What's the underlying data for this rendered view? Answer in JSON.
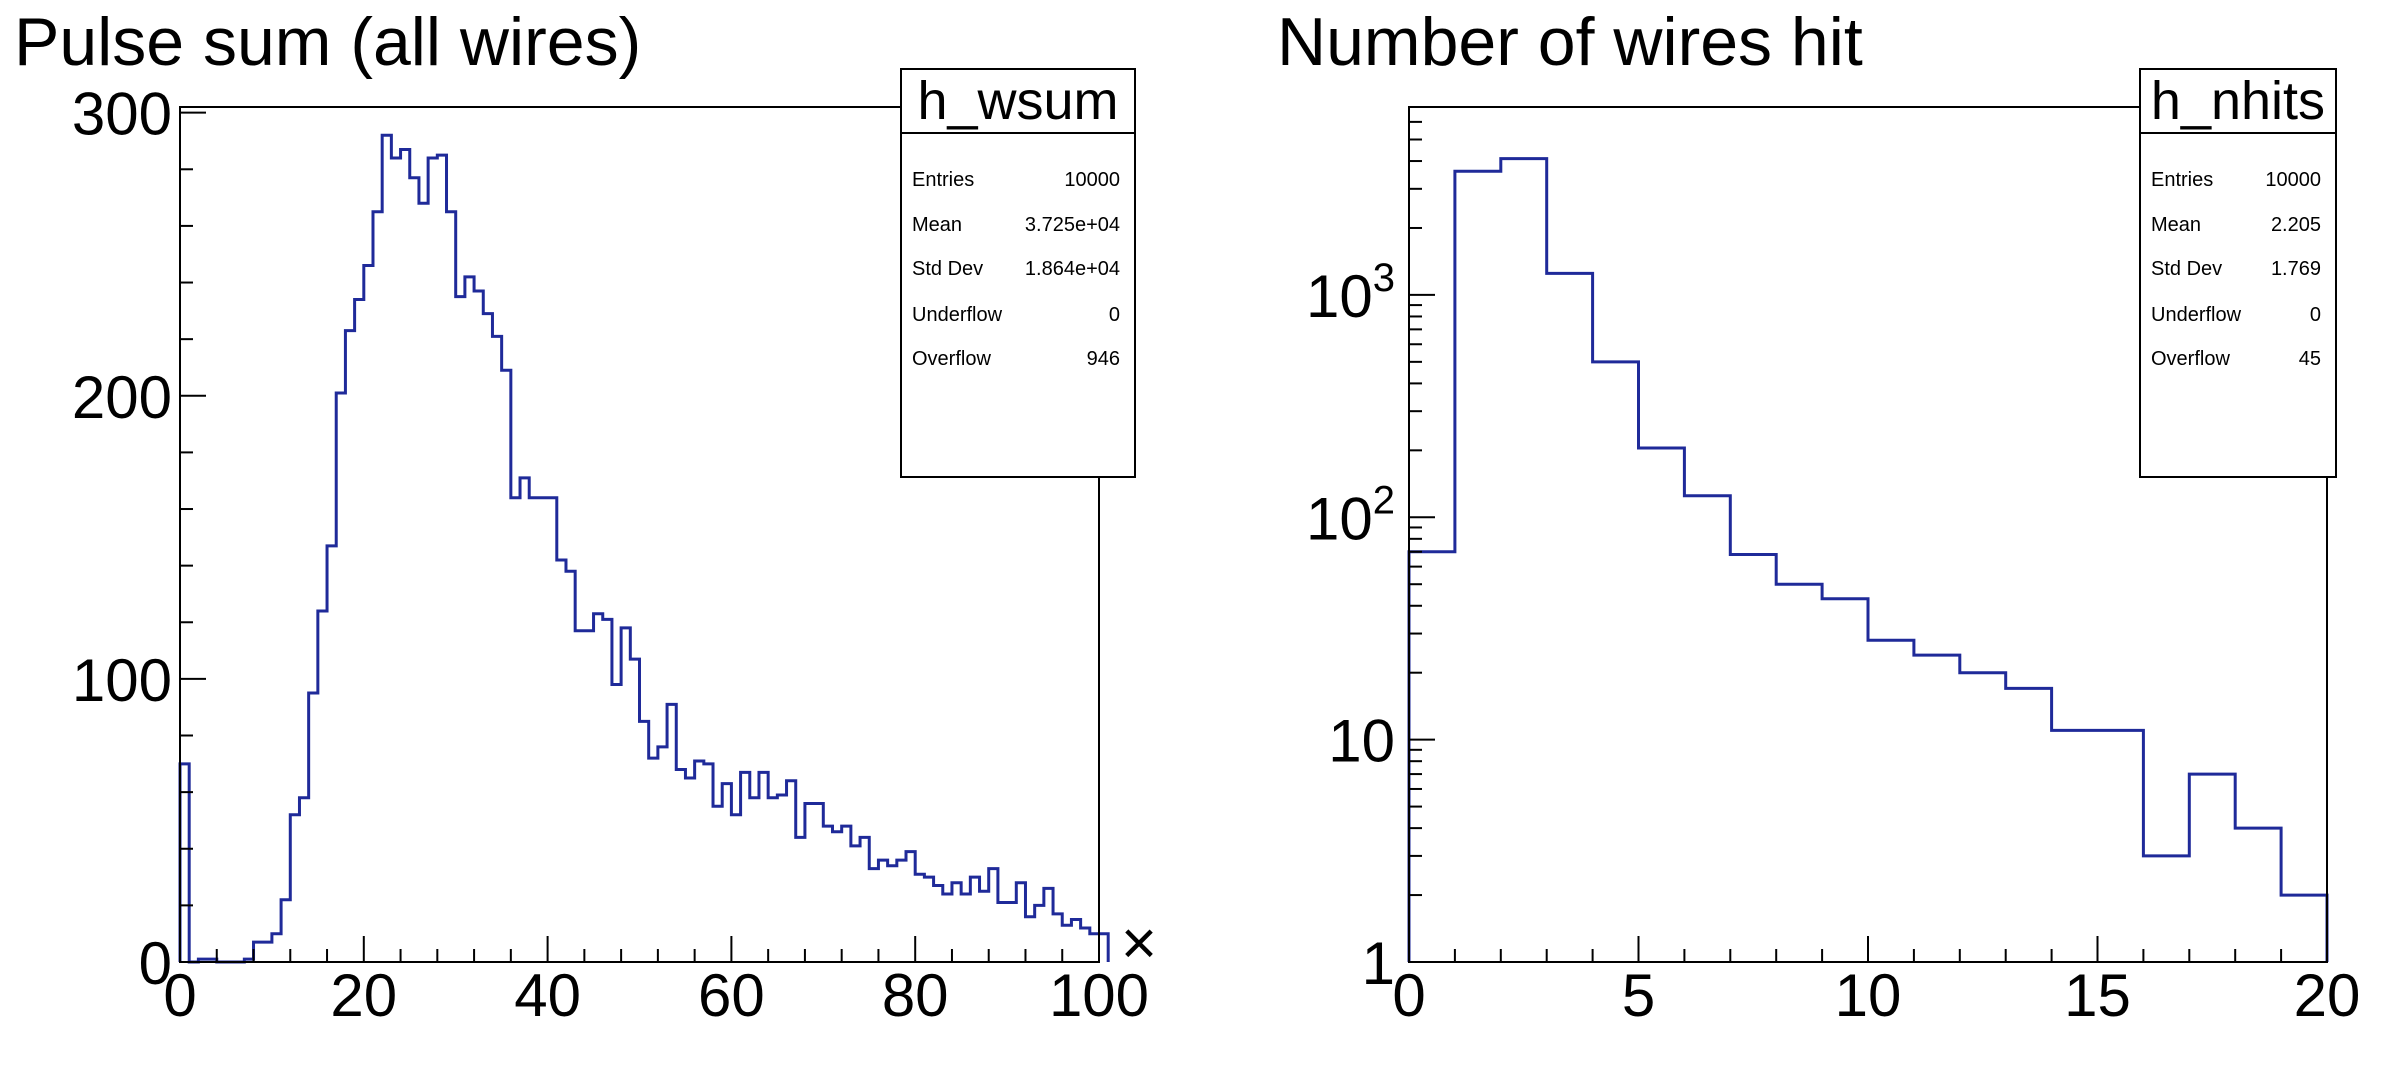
{
  "chart_data": [
    {
      "type": "histogram",
      "title": "Pulse sum (all wires)",
      "xlabel": "",
      "ylabel": "",
      "x_tick_labels": [
        "0",
        "20",
        "40",
        "60",
        "80",
        "100"
      ],
      "x_axis_multiplier": "×",
      "y_tick_labels": [
        "0",
        "100",
        "200",
        "300"
      ],
      "xlim": [
        0,
        100
      ],
      "ylim": [
        0,
        302
      ],
      "log_y": false,
      "grid": false,
      "line_color": "#1f2a99",
      "bin_edges": {
        "start": 0,
        "width": 1
      },
      "values": [
        70,
        0,
        1,
        1,
        0,
        0,
        0,
        1,
        7,
        7,
        10,
        22,
        52,
        58,
        95,
        124,
        147,
        201,
        223,
        234,
        246,
        265,
        292,
        284,
        287,
        277,
        268,
        284,
        285,
        265,
        235,
        242,
        237,
        229,
        221,
        209,
        164,
        171,
        164,
        164,
        164,
        142,
        138,
        117,
        117,
        123,
        121,
        98,
        118,
        107,
        85,
        72,
        76,
        91,
        68,
        65,
        71,
        70,
        55,
        63,
        52,
        67,
        58,
        67,
        58,
        59,
        64,
        44,
        56,
        56,
        48,
        46,
        48,
        41,
        44,
        33,
        36,
        34,
        36,
        39,
        31,
        30,
        27,
        24,
        28,
        24,
        30,
        25,
        33,
        21,
        21,
        28,
        16,
        20,
        26,
        17,
        13,
        15,
        12,
        10,
        10
      ]
    },
    {
      "type": "histogram",
      "title": "Number of wires hit",
      "xlabel": "",
      "ylabel": "",
      "x_tick_labels": [
        "0",
        "5",
        "10",
        "15",
        "20"
      ],
      "y_tick_labels": [
        "1",
        "10",
        "10^2",
        "10^3"
      ],
      "xlim": [
        0,
        20
      ],
      "ylim": [
        1,
        7000
      ],
      "log_y": true,
      "grid": false,
      "line_color": "#1f2a99",
      "bin_edges": {
        "start": 0,
        "width": 1
      },
      "values": [
        70,
        3600,
        4100,
        1250,
        500,
        205,
        125,
        68,
        50,
        43,
        28,
        24,
        20,
        17,
        11,
        11,
        3,
        7,
        4,
        2
      ]
    }
  ],
  "stats": [
    {
      "name": "h_wsum",
      "rows": [
        {
          "label": "Entries",
          "value": "10000"
        },
        {
          "label": "Mean",
          "value": "3.725e+04"
        },
        {
          "label": "Std Dev",
          "value": "1.864e+04"
        },
        {
          "label": "Underflow",
          "value": "0"
        },
        {
          "label": "Overflow",
          "value": "946"
        }
      ]
    },
    {
      "name": "h_nhits",
      "rows": [
        {
          "label": "Entries",
          "value": "10000"
        },
        {
          "label": "Mean",
          "value": "2.205"
        },
        {
          "label": "Std Dev",
          "value": "1.769"
        },
        {
          "label": "Underflow",
          "value": "0"
        },
        {
          "label": "Overflow",
          "value": "45"
        }
      ]
    }
  ]
}
